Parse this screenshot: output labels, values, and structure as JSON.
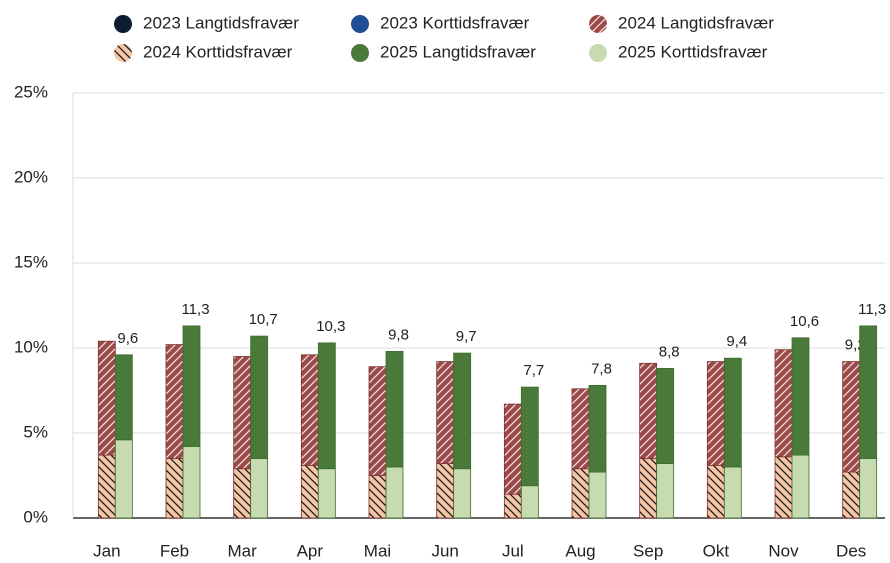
{
  "chart_data": {
    "type": "bar",
    "categories": [
      "Jan",
      "Feb",
      "Mar",
      "Apr",
      "Mai",
      "Jun",
      "Jul",
      "Aug",
      "Sep",
      "Okt",
      "Nov",
      "Des"
    ],
    "series": [
      {
        "name": "2023 Langtidsfravær",
        "color": "#0d1b33",
        "values": [
          null,
          null,
          null,
          null,
          null,
          null,
          null,
          null,
          null,
          null,
          null,
          null
        ]
      },
      {
        "name": "2023 Korttidsfravær",
        "color": "#1f4e97",
        "values": [
          null,
          null,
          null,
          null,
          null,
          null,
          null,
          null,
          null,
          null,
          null,
          null
        ]
      },
      {
        "name": "2024 Langtidsfravær",
        "color": "#9b4a4a",
        "hatch": "/",
        "values": [
          6.7,
          6.7,
          6.6,
          6.5,
          6.4,
          6.0,
          5.3,
          4.7,
          5.6,
          6.1,
          6.3,
          6.5
        ],
        "total_labels": [
          null,
          null,
          null,
          null,
          null,
          null,
          null,
          null,
          null,
          null,
          null,
          "9,2"
        ]
      },
      {
        "name": "2024 Korttidsfravær",
        "color": "#f5c6a5",
        "hatch": "\\",
        "values": [
          3.7,
          3.5,
          2.9,
          3.1,
          2.5,
          3.2,
          1.4,
          2.9,
          3.5,
          3.1,
          3.6,
          2.7
        ]
      },
      {
        "name": "2025 Langtidsfravær",
        "color": "#4a7a3a",
        "values": [
          5.0,
          7.1,
          7.2,
          7.4,
          6.8,
          6.8,
          5.8,
          5.1,
          5.6,
          6.4,
          6.9,
          7.8
        ],
        "total_labels": [
          "9,6",
          "11,3",
          "10,7",
          "10,3",
          "9,8",
          "9,7",
          "7,7",
          "7,8",
          "8,8",
          "9,4",
          "10,6",
          "11,3"
        ]
      },
      {
        "name": "2025 Korttidsfravær",
        "color": "#c6dcb0",
        "values": [
          4.6,
          4.2,
          3.5,
          2.9,
          3.0,
          2.9,
          1.9,
          2.7,
          3.2,
          3.0,
          3.7,
          3.5
        ]
      }
    ],
    "ylim": [
      0,
      25
    ],
    "yticks": [
      {
        "value": 0,
        "label": "0%"
      },
      {
        "value": 5,
        "label": "5%"
      },
      {
        "value": 10,
        "label": "10%"
      },
      {
        "value": 15,
        "label": "15%"
      },
      {
        "value": 20,
        "label": "20%"
      },
      {
        "value": 25,
        "label": "25%"
      }
    ],
    "grid": true
  }
}
